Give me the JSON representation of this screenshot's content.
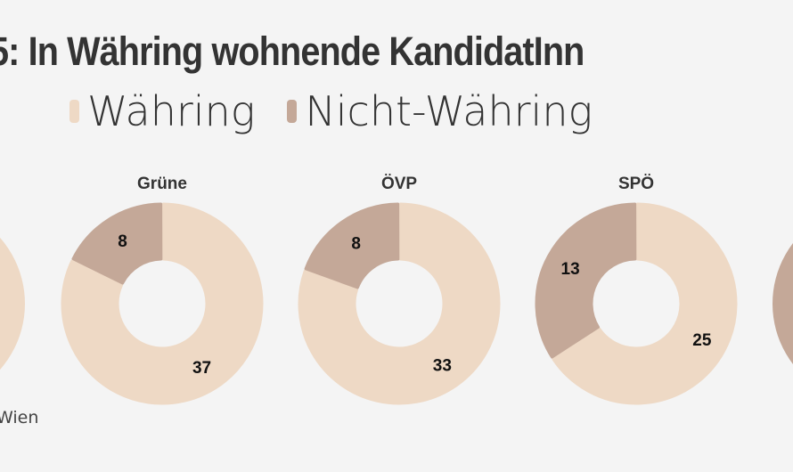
{
  "chart_data": {
    "type": "pie",
    "title": "5: In Währing wohnende KandidatInn",
    "legend": {
      "placement": "top",
      "entries": [
        "Währing",
        "Nicht-Währing"
      ]
    },
    "colors": {
      "Währing": "#eed9c5",
      "Nicht-Währing": "#c4a898"
    },
    "charts": [
      {
        "label": "Grüne",
        "values": {
          "Währing": 37,
          "Nicht-Währing": 8
        }
      },
      {
        "label": "ÖVP",
        "values": {
          "Währing": 33,
          "Nicht-Währing": 8
        }
      },
      {
        "label": "SPÖ",
        "values": {
          "Währing": 25,
          "Nicht-Währing": 13
        }
      }
    ],
    "donut": true
  },
  "footer": "Wien"
}
